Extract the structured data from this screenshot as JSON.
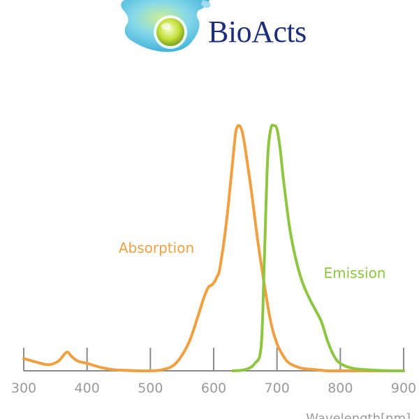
{
  "brand": {
    "name": "BioActs"
  },
  "chart_data": {
    "type": "line",
    "title": "",
    "xlabel": "Wavelength[nm]",
    "ylabel": "",
    "xlim": [
      300,
      900
    ],
    "ylim": [
      0,
      1.0
    ],
    "grid": false,
    "xticks": [
      300,
      400,
      500,
      600,
      700,
      800,
      900
    ],
    "series": [
      {
        "name": "Absorption",
        "color": "#f0a040",
        "x": [
          300,
          320,
          340,
          355,
          365,
          370,
          375,
          385,
          400,
          420,
          440,
          460,
          480,
          500,
          520,
          540,
          560,
          575,
          585,
          592,
          598,
          605,
          610,
          620,
          630,
          635,
          640,
          645,
          650,
          660,
          670,
          680,
          690,
          700,
          710,
          720,
          740,
          760,
          780,
          800,
          820,
          840,
          860,
          880,
          900
        ],
        "y": [
          0.05,
          0.035,
          0.025,
          0.04,
          0.07,
          0.075,
          0.06,
          0.04,
          0.03,
          0.015,
          0.005,
          0.002,
          0.0,
          0.0,
          0.005,
          0.03,
          0.11,
          0.22,
          0.3,
          0.34,
          0.35,
          0.38,
          0.42,
          0.6,
          0.85,
          0.97,
          0.995,
          0.97,
          0.9,
          0.72,
          0.52,
          0.35,
          0.2,
          0.11,
          0.06,
          0.03,
          0.01,
          0.005,
          0.0,
          0.0,
          0.0,
          0.0,
          0.0,
          0.0,
          0.0
        ]
      },
      {
        "name": "Emission",
        "color": "#8ec641",
        "x": [
          630,
          650,
          665,
          675,
          680,
          685,
          690,
          695,
          700,
          705,
          710,
          720,
          730,
          740,
          750,
          760,
          770,
          780,
          790,
          800,
          820,
          850,
          880,
          900
        ],
        "y": [
          0.0,
          0.005,
          0.03,
          0.1,
          0.45,
          0.85,
          0.98,
          0.995,
          0.98,
          0.9,
          0.78,
          0.58,
          0.45,
          0.36,
          0.3,
          0.25,
          0.2,
          0.12,
          0.06,
          0.03,
          0.01,
          0.003,
          0.0,
          0.0
        ]
      }
    ]
  }
}
